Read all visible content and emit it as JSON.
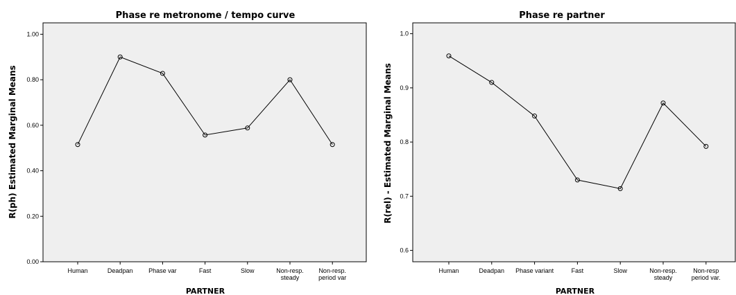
{
  "chart_data": [
    {
      "type": "line",
      "title": "Phase re metronome / tempo curve",
      "xlabel": "PARTNER",
      "ylabel": "R(ph) Estimated Marginal Means",
      "categories": [
        [
          "Human"
        ],
        [
          "Deadpan"
        ],
        [
          "Phase var"
        ],
        [
          "Fast"
        ],
        [
          "Slow"
        ],
        [
          "Non-resp.",
          "steady"
        ],
        [
          "Non-resp.",
          "period var"
        ]
      ],
      "values": [
        0.515,
        0.9,
        0.828,
        0.557,
        0.588,
        0.8,
        0.515
      ],
      "ylim": [
        0.0,
        1.0
      ],
      "yticks": [
        "0.00",
        "0.20",
        "0.40",
        "0.60",
        "0.80",
        "1.00"
      ],
      "yticks_values": [
        0.0,
        0.2,
        0.4,
        0.6,
        0.8,
        1.0
      ],
      "y_axis_max": 1.05,
      "grid": false,
      "marker": "open-circle",
      "background": "#efefef",
      "line_color": "#000000"
    },
    {
      "type": "line",
      "title": "Phase re partner",
      "xlabel": "PARTNER",
      "ylabel": "R(rel) - Estimated Marginal Means",
      "categories": [
        [
          "Human"
        ],
        [
          "Deadpan"
        ],
        [
          "Phase variant"
        ],
        [
          "Fast"
        ],
        [
          "Slow"
        ],
        [
          "Non-resp.",
          "steady"
        ],
        [
          "Non-resp",
          "period var."
        ]
      ],
      "values": [
        0.959,
        0.91,
        0.848,
        0.73,
        0.714,
        0.872,
        0.792
      ],
      "ylim": [
        0.6,
        1.0
      ],
      "yticks": [
        "0.6",
        "0.7",
        "0.8",
        "0.9",
        "1.0"
      ],
      "yticks_values": [
        0.6,
        0.7,
        0.8,
        0.9,
        1.0
      ],
      "y_axis_min": 0.579,
      "y_axis_max": 1.02,
      "grid": false,
      "marker": "open-circle",
      "background": "#efefef",
      "line_color": "#000000"
    }
  ]
}
